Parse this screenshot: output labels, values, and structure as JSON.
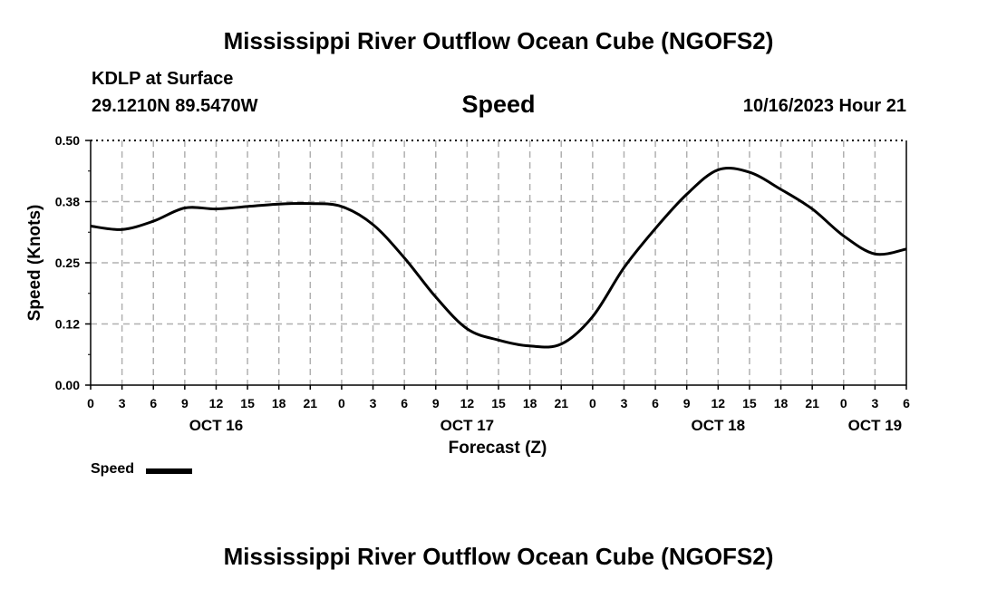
{
  "page": {
    "title": "Mississippi River Outflow Ocean Cube (NGOFS2)",
    "station": "KDLP at Surface",
    "coordinates": "29.1210N  89.5470W",
    "subtitle": "Speed",
    "datetime": "10/16/2023 Hour 21",
    "legend_label": "Speed",
    "bottom_title": "Mississippi River Outflow Ocean Cube (NGOFS2)"
  },
  "colors": {
    "line": "#000000",
    "grid": "#b0b0b0",
    "background": "#ffffff"
  },
  "chart_data": {
    "type": "line",
    "title": "Speed",
    "xlabel": "Forecast (Z)",
    "ylabel": "Speed (Knots)",
    "xlim": [
      0,
      78
    ],
    "ylim": [
      0,
      0.5
    ],
    "y_ticks": [
      0.0,
      0.125,
      0.25,
      0.375,
      0.5
    ],
    "y_tick_labels": [
      "0.00",
      "0.12",
      "0.25",
      "0.38",
      "0.50"
    ],
    "x_ticks": [
      0,
      3,
      6,
      9,
      12,
      15,
      18,
      21,
      24,
      27,
      30,
      33,
      36,
      39,
      42,
      45,
      48,
      51,
      54,
      57,
      60,
      63,
      66,
      69,
      72,
      75,
      78
    ],
    "x_tick_labels": [
      "0",
      "3",
      "6",
      "9",
      "12",
      "15",
      "18",
      "21",
      "0",
      "3",
      "6",
      "9",
      "12",
      "15",
      "18",
      "21",
      "0",
      "3",
      "6",
      "9",
      "12",
      "15",
      "18",
      "21",
      "0",
      "3",
      "6"
    ],
    "date_labels": [
      {
        "x": 12,
        "label": "OCT 16"
      },
      {
        "x": 36,
        "label": "OCT 17"
      },
      {
        "x": 60,
        "label": "OCT 18"
      },
      {
        "x": 75,
        "label": "OCT 19"
      }
    ],
    "grid": true,
    "legend": "bottom-left",
    "series": [
      {
        "name": "Speed",
        "x": [
          0,
          3,
          6,
          9,
          12,
          15,
          18,
          21,
          24,
          27,
          30,
          33,
          36,
          39,
          42,
          45,
          48,
          51,
          54,
          57,
          60,
          63,
          66,
          69,
          72,
          75,
          78
        ],
        "values": [
          0.325,
          0.318,
          0.335,
          0.362,
          0.36,
          0.365,
          0.37,
          0.371,
          0.365,
          0.328,
          0.26,
          0.18,
          0.115,
          0.092,
          0.08,
          0.084,
          0.14,
          0.24,
          0.32,
          0.39,
          0.44,
          0.435,
          0.4,
          0.36,
          0.305,
          0.268,
          0.278
        ]
      }
    ]
  }
}
